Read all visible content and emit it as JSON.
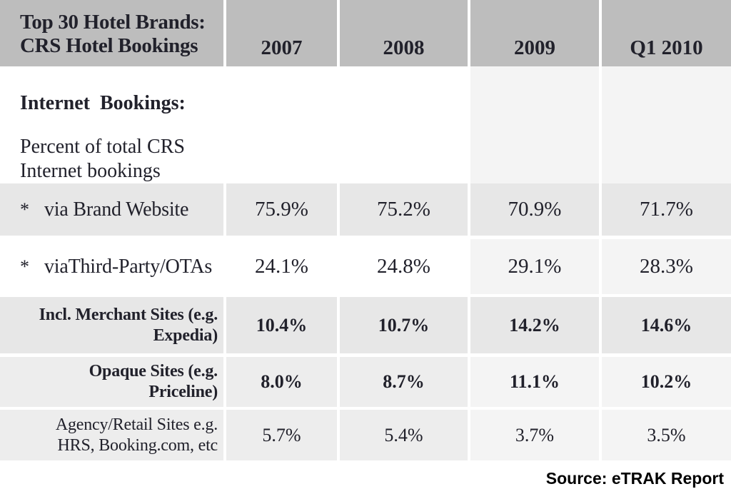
{
  "header": {
    "title_line1": "Top 30 Hotel Brands:",
    "title_line2": "CRS Hotel Bookings",
    "columns": [
      "2007",
      "2008",
      "2009",
      "Q1 2010"
    ]
  },
  "section": {
    "heading": "Internet  Bookings:",
    "sub_line1": "Percent of total CRS",
    "sub_line2": "Internet bookings"
  },
  "rows": [
    {
      "bullet": "*",
      "line1": "via Brand Website",
      "values": [
        "75.9%",
        "75.2%",
        "70.9%",
        "71.7%"
      ]
    },
    {
      "bullet": "*",
      "line1": "viaThird-Party/OTAs",
      "values": [
        "24.1%",
        "24.8%",
        "29.1%",
        "28.3%"
      ]
    },
    {
      "line1": "Incl. Merchant Sites (e.g.",
      "line2": "Expedia)",
      "values": [
        "10.4%",
        "10.7%",
        "14.2%",
        "14.6%"
      ]
    },
    {
      "line1": "Opaque Sites (e.g.",
      "line2": "Priceline)",
      "values": [
        "8.0%",
        "8.7%",
        "11.1%",
        "10.2%"
      ]
    },
    {
      "line1": "Agency/Retail Sites e.g.",
      "line2": "HRS, Booking.com, etc",
      "values": [
        "5.7%",
        "5.4%",
        "3.7%",
        "3.5%"
      ]
    }
  ],
  "footer": {
    "source": "Source: eTRAK Report"
  },
  "colors": {
    "header_bg": "#bdbdbd",
    "row_gray": "#e7e7e7",
    "row_light": "#ededed",
    "column_tint": "#f4f4f4",
    "text": "#21212b",
    "source_text": "#000000"
  },
  "chart_data": {
    "type": "table",
    "title": "Top 30 Hotel Brands: CRS Hotel Bookings",
    "section_heading": "Internet Bookings:",
    "section_subheading": "Percent of total CRS Internet bookings",
    "columns": [
      "2007",
      "2008",
      "2009",
      "Q1 2010"
    ],
    "unit": "%",
    "rows": [
      {
        "label": "* via Brand Website",
        "values_pct": [
          75.9,
          75.2,
          70.9,
          71.7
        ]
      },
      {
        "label": "* viaThird-Party/OTAs",
        "values_pct": [
          24.1,
          24.8,
          29.1,
          28.3
        ]
      },
      {
        "label": "Incl. Merchant Sites (e.g. Expedia)",
        "values_pct": [
          10.4,
          10.7,
          14.2,
          14.6
        ]
      },
      {
        "label": "Opaque Sites (e.g. Priceline)",
        "values_pct": [
          8.0,
          8.7,
          11.1,
          10.2
        ]
      },
      {
        "label": "Agency/Retail Sites e.g. HRS, Booking.com, etc",
        "values_pct": [
          5.7,
          5.4,
          3.7,
          3.5
        ]
      }
    ],
    "source": "Source: eTRAK Report"
  }
}
